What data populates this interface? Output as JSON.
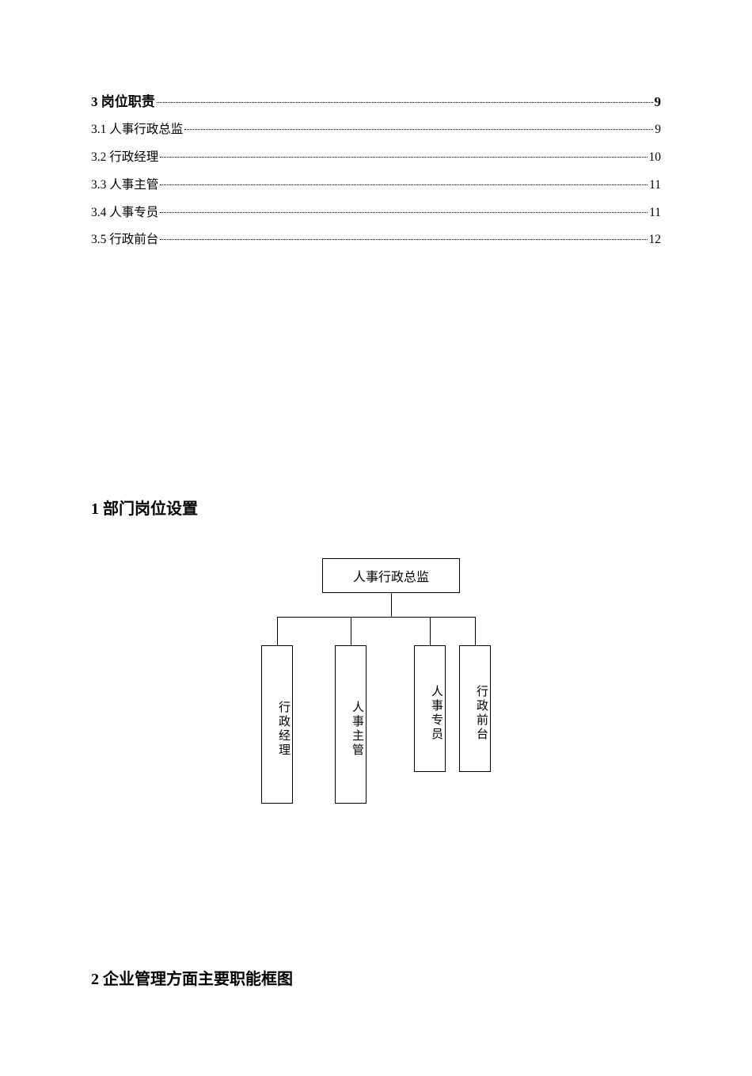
{
  "toc": {
    "items": [
      {
        "title": "3 岗位职责",
        "page": "9",
        "bold": true
      },
      {
        "title": "3.1 人事行政总监",
        "page": "9",
        "bold": false
      },
      {
        "title": "3.2 行政经理",
        "page": "10",
        "bold": false
      },
      {
        "title": "3.3 人事主管",
        "page": "11",
        "bold": false
      },
      {
        "title": "3.4 人事专员",
        "page": "11",
        "bold": false
      },
      {
        "title": "3.5 行政前台",
        "page": "12",
        "bold": false
      }
    ]
  },
  "section1": {
    "heading": "1 部门岗位设置"
  },
  "orgchart": {
    "root": "人事行政总监",
    "children": [
      "行政经理",
      "人事主管",
      "人事专员",
      "行政前台"
    ]
  },
  "section2": {
    "heading": "2 企业管理方面主要职能框图"
  },
  "colors": {
    "text": "#000000",
    "background": "#ffffff",
    "border": "#000000"
  },
  "fonts": {
    "body_family": "SimSun",
    "heading_size_pt": 15,
    "toc_bold_size_pt": 13,
    "toc_size_pt": 12,
    "org_box_size_pt": 12
  }
}
